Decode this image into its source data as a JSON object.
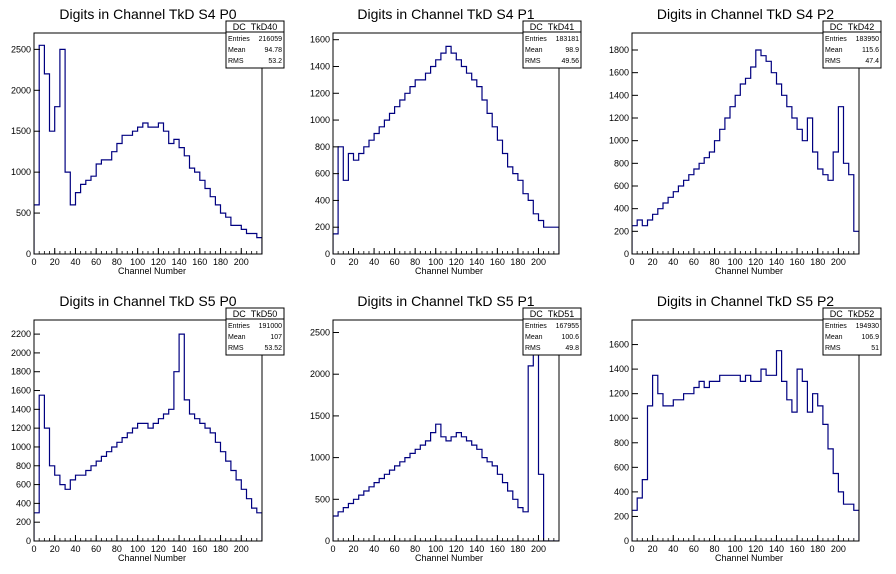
{
  "chart_data": [
    {
      "type": "bar",
      "title": "Digits in Channel TkD S4 P0",
      "xlabel": "Channel Number",
      "ylabel": "",
      "xlim": [
        0,
        220
      ],
      "ylim": [
        0,
        2700
      ],
      "xticks": [
        0,
        20,
        40,
        60,
        80,
        100,
        120,
        140,
        160,
        180,
        200
      ],
      "yticks": [
        0,
        500,
        1000,
        1500,
        2000,
        2500
      ],
      "line_color": "#000080",
      "stats": {
        "name": "DC_TkD40",
        "entries_label": "Entries",
        "entries": "216059",
        "mean_label": "Mean",
        "mean": "94.78",
        "rms_label": "RMS",
        "rms": "53.2"
      },
      "x": [
        0,
        5,
        10,
        15,
        20,
        25,
        30,
        35,
        40,
        45,
        50,
        55,
        60,
        65,
        70,
        75,
        80,
        85,
        90,
        95,
        100,
        105,
        110,
        115,
        120,
        125,
        130,
        135,
        140,
        145,
        150,
        155,
        160,
        165,
        170,
        175,
        180,
        185,
        190,
        195,
        200,
        205,
        210,
        215
      ],
      "values": [
        600,
        2550,
        2200,
        1500,
        1800,
        2500,
        1000,
        600,
        750,
        850,
        900,
        950,
        1100,
        1150,
        1150,
        1250,
        1350,
        1450,
        1450,
        1500,
        1550,
        1600,
        1550,
        1550,
        1600,
        1500,
        1350,
        1400,
        1300,
        1200,
        1050,
        1000,
        900,
        800,
        700,
        600,
        500,
        450,
        350,
        350,
        300,
        250,
        250,
        200
      ]
    },
    {
      "type": "bar",
      "title": "Digits in Channel TkD S4 P1",
      "xlabel": "Channel Number",
      "ylabel": "",
      "xlim": [
        0,
        220
      ],
      "ylim": [
        0,
        1650
      ],
      "xticks": [
        0,
        20,
        40,
        60,
        80,
        100,
        120,
        140,
        160,
        180,
        200
      ],
      "yticks": [
        0,
        200,
        400,
        600,
        800,
        1000,
        1200,
        1400,
        1600
      ],
      "line_color": "#000080",
      "stats": {
        "name": "DC_TkD41",
        "entries_label": "Entries",
        "entries": "183181",
        "mean_label": "Mean",
        "mean": "98.9",
        "rms_label": "RMS",
        "rms": "49.56"
      },
      "x": [
        0,
        5,
        10,
        15,
        20,
        25,
        30,
        35,
        40,
        45,
        50,
        55,
        60,
        65,
        70,
        75,
        80,
        85,
        90,
        95,
        100,
        105,
        110,
        115,
        120,
        125,
        130,
        135,
        140,
        145,
        150,
        155,
        160,
        165,
        170,
        175,
        180,
        185,
        190,
        195,
        200,
        205,
        210,
        215
      ],
      "values": [
        150,
        800,
        550,
        750,
        700,
        750,
        800,
        850,
        900,
        950,
        1000,
        1050,
        1100,
        1150,
        1200,
        1250,
        1300,
        1300,
        1350,
        1400,
        1450,
        1500,
        1550,
        1500,
        1450,
        1400,
        1350,
        1300,
        1250,
        1150,
        1050,
        950,
        850,
        750,
        650,
        600,
        550,
        450,
        400,
        300,
        250,
        200,
        200,
        200
      ]
    },
    {
      "type": "bar",
      "title": "Digits in Channel TkD S4 P2",
      "xlabel": "Channel Number",
      "ylabel": "",
      "xlim": [
        0,
        220
      ],
      "ylim": [
        0,
        1950
      ],
      "xticks": [
        0,
        20,
        40,
        60,
        80,
        100,
        120,
        140,
        160,
        180,
        200
      ],
      "yticks": [
        0,
        200,
        400,
        600,
        800,
        1000,
        1200,
        1400,
        1600,
        1800
      ],
      "line_color": "#000080",
      "stats": {
        "name": "DC_TkD42",
        "entries_label": "Entries",
        "entries": "183950",
        "mean_label": "Mean",
        "mean": "115.6",
        "rms_label": "RMS",
        "rms": "47.4"
      },
      "x": [
        0,
        5,
        10,
        15,
        20,
        25,
        30,
        35,
        40,
        45,
        50,
        55,
        60,
        65,
        70,
        75,
        80,
        85,
        90,
        95,
        100,
        105,
        110,
        115,
        120,
        125,
        130,
        135,
        140,
        145,
        150,
        155,
        160,
        165,
        170,
        175,
        180,
        185,
        190,
        195,
        200,
        205,
        210,
        215
      ],
      "values": [
        250,
        300,
        250,
        300,
        350,
        400,
        450,
        500,
        550,
        600,
        650,
        700,
        750,
        800,
        850,
        900,
        1000,
        1100,
        1200,
        1300,
        1400,
        1500,
        1550,
        1650,
        1800,
        1750,
        1700,
        1600,
        1500,
        1400,
        1300,
        1200,
        1100,
        1000,
        1200,
        900,
        750,
        700,
        650,
        900,
        1300,
        800,
        700,
        200
      ]
    },
    {
      "type": "bar",
      "title": "Digits in Channel TkD S5 P0",
      "xlabel": "Channel Number",
      "ylabel": "",
      "xlim": [
        0,
        220
      ],
      "ylim": [
        0,
        2350
      ],
      "xticks": [
        0,
        20,
        40,
        60,
        80,
        100,
        120,
        140,
        160,
        180,
        200
      ],
      "yticks": [
        0,
        200,
        400,
        600,
        800,
        1000,
        1200,
        1400,
        1600,
        1800,
        2000,
        2200
      ],
      "line_color": "#000080",
      "stats": {
        "name": "DC_TkD50",
        "entries_label": "Entries",
        "entries": "191000",
        "mean_label": "Mean",
        "mean": "107",
        "rms_label": "RMS",
        "rms": "53.52"
      },
      "x": [
        0,
        5,
        10,
        15,
        20,
        25,
        30,
        35,
        40,
        45,
        50,
        55,
        60,
        65,
        70,
        75,
        80,
        85,
        90,
        95,
        100,
        105,
        110,
        115,
        120,
        125,
        130,
        135,
        140,
        145,
        150,
        155,
        160,
        165,
        170,
        175,
        180,
        185,
        190,
        195,
        200,
        205,
        210,
        215
      ],
      "values": [
        300,
        1550,
        1200,
        800,
        700,
        600,
        550,
        650,
        700,
        700,
        750,
        800,
        850,
        900,
        950,
        1000,
        1050,
        1100,
        1150,
        1200,
        1250,
        1250,
        1200,
        1250,
        1300,
        1350,
        1400,
        1800,
        2200,
        1500,
        1350,
        1300,
        1250,
        1200,
        1150,
        1050,
        950,
        850,
        750,
        650,
        550,
        450,
        350,
        300
      ]
    },
    {
      "type": "bar",
      "title": "Digits in Channel TkD S5 P1",
      "xlabel": "Channel Number",
      "ylabel": "",
      "xlim": [
        0,
        220
      ],
      "ylim": [
        0,
        2650
      ],
      "xticks": [
        0,
        20,
        40,
        60,
        80,
        100,
        120,
        140,
        160,
        180,
        200
      ],
      "yticks": [
        0,
        500,
        1000,
        1500,
        2000,
        2500
      ],
      "line_color": "#000080",
      "stats": {
        "name": "DC_TkD51",
        "entries_label": "Entries",
        "entries": "167955",
        "mean_label": "Mean",
        "mean": "100.6",
        "rms_label": "RMS",
        "rms": "49.8"
      },
      "x": [
        0,
        5,
        10,
        15,
        20,
        25,
        30,
        35,
        40,
        45,
        50,
        55,
        60,
        65,
        70,
        75,
        80,
        85,
        90,
        95,
        100,
        105,
        110,
        115,
        120,
        125,
        130,
        135,
        140,
        145,
        150,
        155,
        160,
        165,
        170,
        175,
        180,
        185,
        190,
        195,
        200,
        205,
        210,
        215
      ],
      "values": [
        300,
        350,
        400,
        450,
        500,
        550,
        600,
        650,
        700,
        750,
        800,
        850,
        900,
        950,
        1000,
        1050,
        1100,
        1150,
        1200,
        1300,
        1400,
        1250,
        1200,
        1250,
        1300,
        1250,
        1200,
        1150,
        1100,
        1000,
        950,
        900,
        800,
        700,
        600,
        500,
        400,
        350,
        2100,
        2500,
        800,
        0,
        0,
        0
      ]
    },
    {
      "type": "bar",
      "title": "Digits in Channel TkD S5 P2",
      "xlabel": "Channel Number",
      "ylabel": "",
      "xlim": [
        0,
        220
      ],
      "ylim": [
        0,
        1800
      ],
      "xticks": [
        0,
        20,
        40,
        60,
        80,
        100,
        120,
        140,
        160,
        180,
        200
      ],
      "yticks": [
        0,
        200,
        400,
        600,
        800,
        1000,
        1200,
        1400,
        1600
      ],
      "line_color": "#000080",
      "stats": {
        "name": "DC_TkD52",
        "entries_label": "Entries",
        "entries": "194930",
        "mean_label": "Mean",
        "mean": "106.9",
        "rms_label": "RMS",
        "rms": "51"
      },
      "x": [
        0,
        5,
        10,
        15,
        20,
        25,
        30,
        35,
        40,
        45,
        50,
        55,
        60,
        65,
        70,
        75,
        80,
        85,
        90,
        95,
        100,
        105,
        110,
        115,
        120,
        125,
        130,
        135,
        140,
        145,
        150,
        155,
        160,
        165,
        170,
        175,
        180,
        185,
        190,
        195,
        200,
        205,
        210,
        215
      ],
      "values": [
        250,
        350,
        500,
        1100,
        1350,
        1200,
        1100,
        1100,
        1150,
        1150,
        1200,
        1200,
        1250,
        1300,
        1250,
        1300,
        1300,
        1350,
        1350,
        1350,
        1350,
        1300,
        1350,
        1300,
        1300,
        1400,
        1350,
        1350,
        1550,
        1300,
        1150,
        1050,
        1400,
        1300,
        1050,
        1200,
        1100,
        950,
        750,
        550,
        400,
        300,
        300,
        250
      ]
    }
  ]
}
